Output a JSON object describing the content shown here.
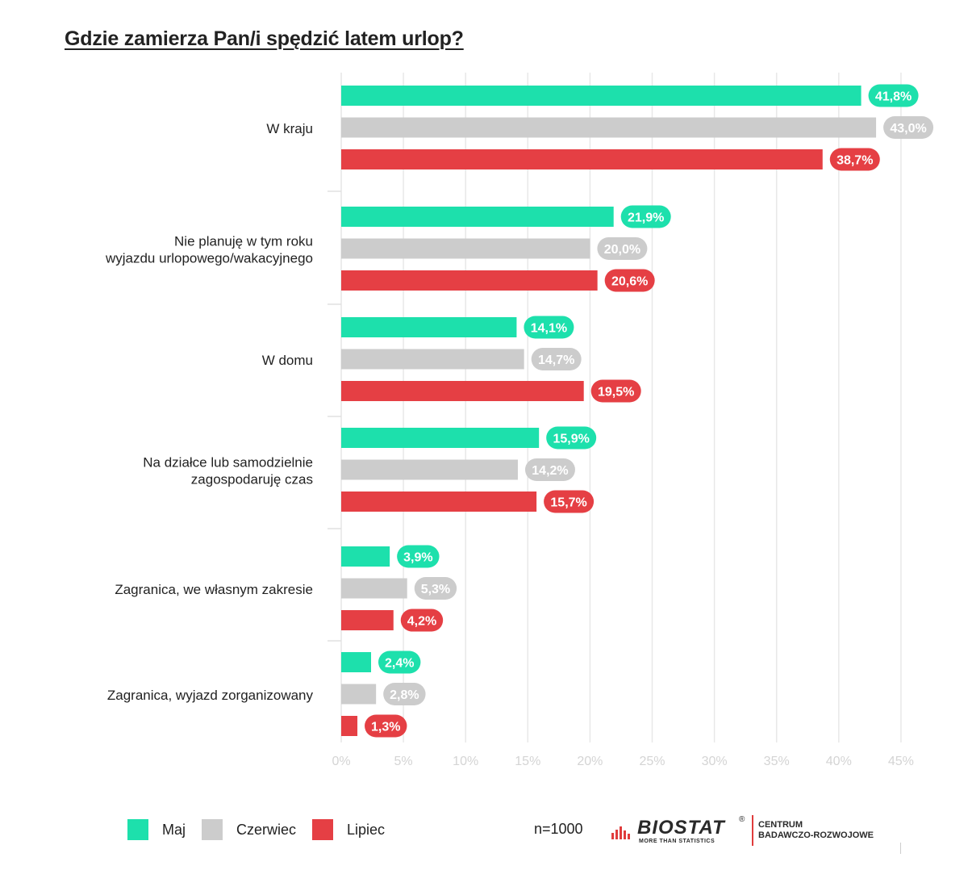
{
  "title": "Gdzie zamierza Pan/i spędzić latem urlop?",
  "chart_data": {
    "type": "bar",
    "orientation": "horizontal",
    "title": "Gdzie zamierza Pan/i spędzić latem urlop?",
    "categories": [
      [
        "W kraju"
      ],
      [
        "Nie planuję w tym roku",
        "wyjazdu urlopowego/wakacyjnego"
      ],
      [
        "W domu"
      ],
      [
        "Na działce lub samodzielnie",
        "zagospodaruję czas"
      ],
      [
        "Zagranica, we własnym zakresie"
      ],
      [
        "Zagranica, wyjazd zorganizowany"
      ]
    ],
    "series": [
      {
        "name": "Maj",
        "color": "#1de0ac",
        "values": [
          41.8,
          21.9,
          14.1,
          15.9,
          3.9,
          2.4
        ],
        "labels": [
          "41,8%",
          "21,9%",
          "14,1%",
          "15,9%",
          "3,9%",
          "2,4%"
        ]
      },
      {
        "name": "Czerwiec",
        "color": "#cccccc",
        "values": [
          43.0,
          20.0,
          14.7,
          14.2,
          5.3,
          2.8
        ],
        "labels": [
          "43,0%",
          "20,0%",
          "14,7%",
          "14,2%",
          "5,3%",
          "2,8%"
        ]
      },
      {
        "name": "Lipiec",
        "color": "#e53f44",
        "values": [
          38.7,
          20.6,
          19.5,
          15.7,
          4.2,
          1.3
        ],
        "labels": [
          "38,7%",
          "20,6%",
          "19,5%",
          "15,7%",
          "4,2%",
          "1,3%"
        ]
      }
    ],
    "xlim": [
      0,
      45
    ],
    "x_ticks": [
      0,
      5,
      10,
      15,
      20,
      25,
      30,
      35,
      40,
      45
    ],
    "x_tick_labels": [
      "0%",
      "5%",
      "10%",
      "15%",
      "20%",
      "25%",
      "30%",
      "35%",
      "40%",
      "45%"
    ],
    "grid": "vertical",
    "legend_position": "bottom-left"
  },
  "legend": {
    "items": [
      {
        "label": "Maj",
        "color": "#1de0ac"
      },
      {
        "label": "Czerwiec",
        "color": "#cccccc"
      },
      {
        "label": "Lipiec",
        "color": "#e53f44"
      }
    ]
  },
  "sample_size": "n=1000",
  "logo": {
    "name": "BIOSTAT",
    "registered": "®",
    "tagline": "MORE THAN STATISTICS",
    "division_line1": "CENTRUM",
    "division_line2": "BADAWCZO-ROZWOJOWE"
  }
}
